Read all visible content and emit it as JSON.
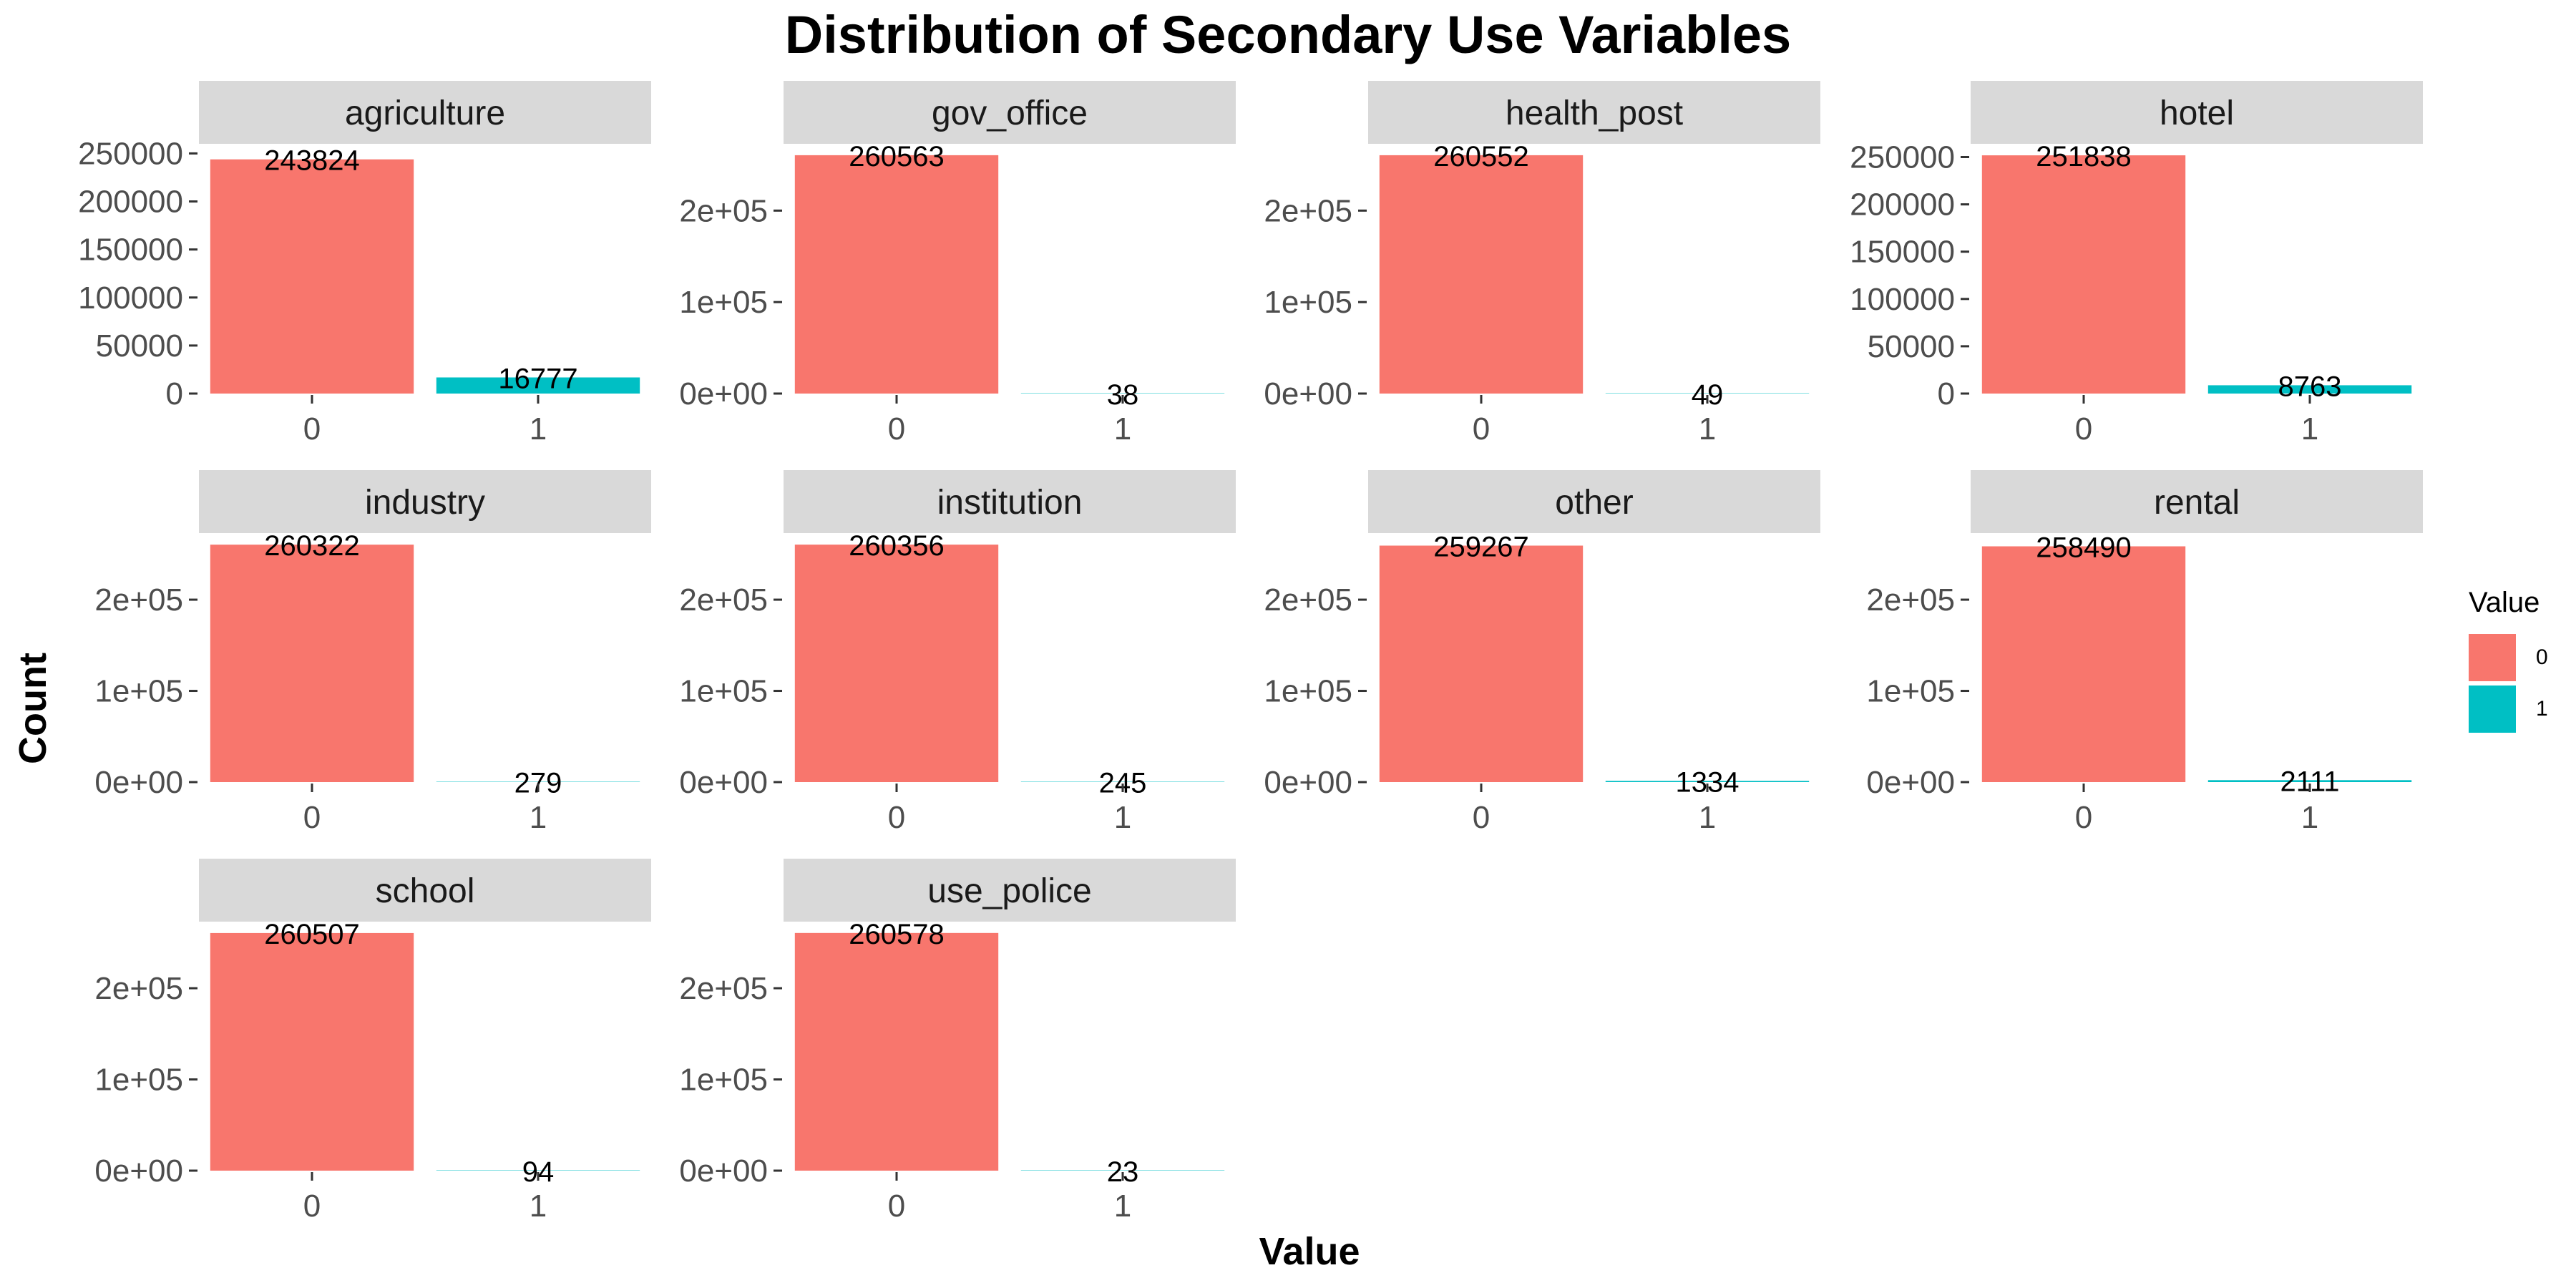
{
  "chart_data": {
    "type": "bar",
    "title": "Distribution of Secondary Use Variables",
    "xlabel": "Value",
    "ylabel": "Count",
    "legend": {
      "title": "Value",
      "entries": [
        {
          "label": "0",
          "color": "#F8766D"
        },
        {
          "label": "1",
          "color": "#00BFC4"
        }
      ],
      "placement": "right"
    },
    "bar_colors": [
      "#F8766D",
      "#00BFC4"
    ],
    "categories": [
      "0",
      "1"
    ],
    "grid": false,
    "facets": [
      {
        "name": "agriculture",
        "values": [
          243824,
          16777
        ],
        "ylim": [
          0,
          260000
        ],
        "yticks": [
          {
            "v": 0,
            "label": "0"
          },
          {
            "v": 50000,
            "label": "50000"
          },
          {
            "v": 100000,
            "label": "100000"
          },
          {
            "v": 150000,
            "label": "150000"
          },
          {
            "v": 200000,
            "label": "200000"
          },
          {
            "v": 250000,
            "label": "250000"
          }
        ]
      },
      {
        "name": "gov_office",
        "values": [
          260563,
          38
        ],
        "ylim": [
          0,
          273000
        ],
        "yticks": [
          {
            "v": 0,
            "label": "0e+00"
          },
          {
            "v": 100000,
            "label": "1e+05"
          },
          {
            "v": 200000,
            "label": "2e+05"
          }
        ]
      },
      {
        "name": "health_post",
        "values": [
          260552,
          49
        ],
        "ylim": [
          0,
          273000
        ],
        "yticks": [
          {
            "v": 0,
            "label": "0e+00"
          },
          {
            "v": 100000,
            "label": "1e+05"
          },
          {
            "v": 200000,
            "label": "2e+05"
          }
        ]
      },
      {
        "name": "hotel",
        "values": [
          251838,
          8763
        ],
        "ylim": [
          0,
          264000
        ],
        "yticks": [
          {
            "v": 0,
            "label": "0"
          },
          {
            "v": 50000,
            "label": "50000"
          },
          {
            "v": 100000,
            "label": "100000"
          },
          {
            "v": 150000,
            "label": "150000"
          },
          {
            "v": 200000,
            "label": "200000"
          },
          {
            "v": 250000,
            "label": "250000"
          }
        ]
      },
      {
        "name": "industry",
        "values": [
          260322,
          279
        ],
        "ylim": [
          0,
          273000
        ],
        "yticks": [
          {
            "v": 0,
            "label": "0e+00"
          },
          {
            "v": 100000,
            "label": "1e+05"
          },
          {
            "v": 200000,
            "label": "2e+05"
          }
        ]
      },
      {
        "name": "institution",
        "values": [
          260356,
          245
        ],
        "ylim": [
          0,
          273000
        ],
        "yticks": [
          {
            "v": 0,
            "label": "0e+00"
          },
          {
            "v": 100000,
            "label": "1e+05"
          },
          {
            "v": 200000,
            "label": "2e+05"
          }
        ]
      },
      {
        "name": "other",
        "values": [
          259267,
          1334
        ],
        "ylim": [
          0,
          273000
        ],
        "yticks": [
          {
            "v": 0,
            "label": "0e+00"
          },
          {
            "v": 100000,
            "label": "1e+05"
          },
          {
            "v": 200000,
            "label": "2e+05"
          }
        ]
      },
      {
        "name": "rental",
        "values": [
          258490,
          2111
        ],
        "ylim": [
          0,
          273000
        ],
        "yticks": [
          {
            "v": 0,
            "label": "0e+00"
          },
          {
            "v": 100000,
            "label": "1e+05"
          },
          {
            "v": 200000,
            "label": "2e+05"
          }
        ]
      },
      {
        "name": "school",
        "values": [
          260507,
          94
        ],
        "ylim": [
          0,
          273000
        ],
        "yticks": [
          {
            "v": 0,
            "label": "0e+00"
          },
          {
            "v": 100000,
            "label": "1e+05"
          },
          {
            "v": 200000,
            "label": "2e+05"
          }
        ]
      },
      {
        "name": "use_police",
        "values": [
          260578,
          23
        ],
        "ylim": [
          0,
          273000
        ],
        "yticks": [
          {
            "v": 0,
            "label": "0e+00"
          },
          {
            "v": 100000,
            "label": "1e+05"
          },
          {
            "v": 200000,
            "label": "2e+05"
          }
        ]
      }
    ]
  }
}
